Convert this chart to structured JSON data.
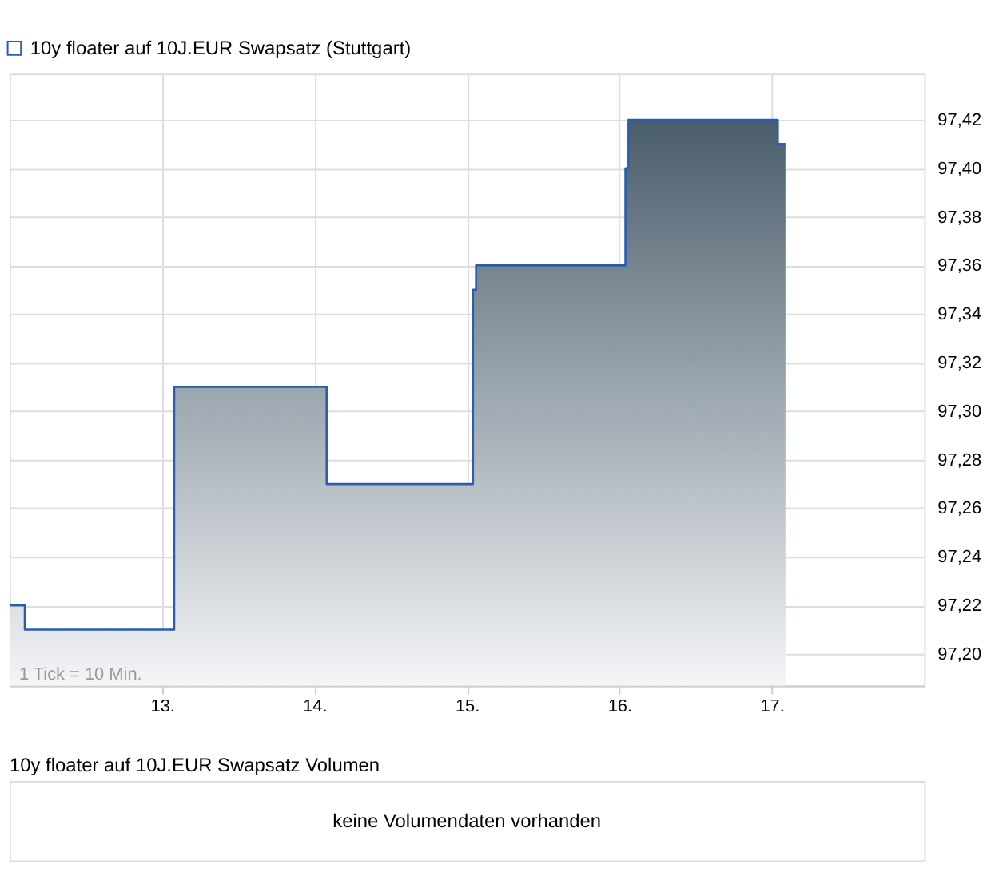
{
  "chart_data": [
    {
      "type": "area",
      "x": [
        12.0,
        12.1,
        12.1,
        13.08,
        13.08,
        14.08,
        14.08,
        15.04,
        15.04,
        15.06,
        15.06,
        16.04,
        16.04,
        16.06,
        16.06,
        17.04,
        17.04,
        17.09
      ],
      "series": [
        {
          "name": "10y floater auf 10J.EUR Swapsatz (Stuttgart)",
          "color": "#2a5db0",
          "values": [
            97.22,
            97.22,
            97.21,
            97.21,
            97.31,
            97.31,
            97.27,
            97.27,
            97.35,
            97.35,
            97.36,
            97.36,
            97.4,
            97.4,
            97.42,
            97.42,
            97.41,
            97.41
          ]
        }
      ],
      "xlim": [
        12.0,
        18.0
      ],
      "xticks": [
        {
          "value": 13,
          "label": "13."
        },
        {
          "value": 14,
          "label": "14."
        },
        {
          "value": 15,
          "label": "15."
        },
        {
          "value": 16,
          "label": "16."
        },
        {
          "value": 17,
          "label": "17."
        }
      ],
      "ylim": [
        97.187,
        97.439
      ],
      "yticks": [
        {
          "value": 97.2,
          "label": "97,20"
        },
        {
          "value": 97.22,
          "label": "97,22"
        },
        {
          "value": 97.24,
          "label": "97,24"
        },
        {
          "value": 97.26,
          "label": "97,26"
        },
        {
          "value": 97.28,
          "label": "97,28"
        },
        {
          "value": 97.3,
          "label": "97,30"
        },
        {
          "value": 97.32,
          "label": "97,32"
        },
        {
          "value": 97.34,
          "label": "97,34"
        },
        {
          "value": 97.36,
          "label": "97,36"
        },
        {
          "value": 97.38,
          "label": "97,38"
        },
        {
          "value": 97.4,
          "label": "97,40"
        },
        {
          "value": 97.42,
          "label": "97,42"
        }
      ],
      "grid": true,
      "legend": "top left",
      "annotations": [
        "1 Tick = 10 Min."
      ]
    },
    {
      "type": "other",
      "title": "10y floater auf 10J.EUR Swapsatz Volumen",
      "annotations": [
        "keine Volumendaten vorhanden"
      ]
    }
  ]
}
